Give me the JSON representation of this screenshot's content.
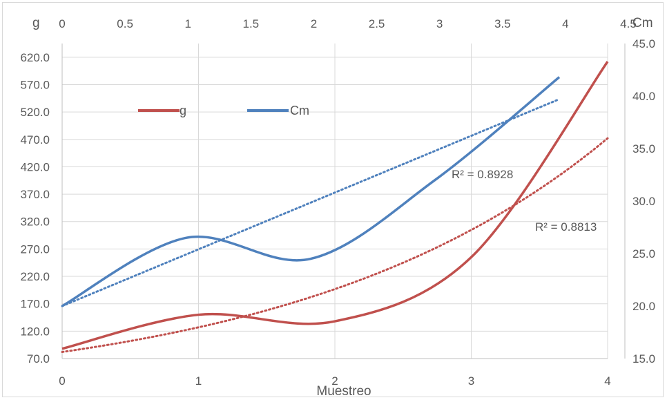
{
  "chart_data": {
    "type": "line",
    "xlabel": "Muestreo",
    "secondary_x_label": "Cm",
    "left_axis_label": "g",
    "right_axis_label": "",
    "x_bottom": {
      "range": [
        0,
        4
      ],
      "ticks": [
        "0",
        "1",
        "2",
        "3",
        "4"
      ]
    },
    "x_top": {
      "range": [
        0,
        4.5
      ],
      "ticks": [
        "0",
        "0.5",
        "1",
        "1.5",
        "2",
        "2.5",
        "3",
        "3.5",
        "4",
        "4.5"
      ]
    },
    "y_left": {
      "range": [
        70,
        645
      ],
      "ticks": [
        "70.0",
        "120.0",
        "170.0",
        "220.0",
        "270.0",
        "320.0",
        "370.0",
        "420.0",
        "470.0",
        "520.0",
        "570.0",
        "620.0"
      ]
    },
    "y_right": {
      "range": [
        15,
        45
      ],
      "ticks": [
        "15.0",
        "20.0",
        "25.0",
        "30.0",
        "35.0",
        "40.0",
        "45.0"
      ]
    },
    "grid": true,
    "legend_position": "upper-left",
    "series": [
      {
        "name": "g",
        "axis": "primary",
        "color": "#c0504d",
        "x": [
          0,
          1,
          2,
          3,
          4
        ],
        "values": [
          88,
          150,
          138,
          255,
          612
        ],
        "trendline": {
          "type": "exponential",
          "r2_label": "R² = 0.8813",
          "start": 82,
          "end": 472
        }
      },
      {
        "name": "Cm",
        "axis": "secondary",
        "color": "#4f81bd",
        "x": [
          0,
          1,
          2,
          3,
          4
        ],
        "values": [
          20.0,
          26.5,
          24.5,
          32.0,
          41.8
        ],
        "trendline": {
          "type": "linear",
          "r2_label": "R² = 0.8928",
          "start": 20.0,
          "end": 39.7
        }
      }
    ]
  }
}
